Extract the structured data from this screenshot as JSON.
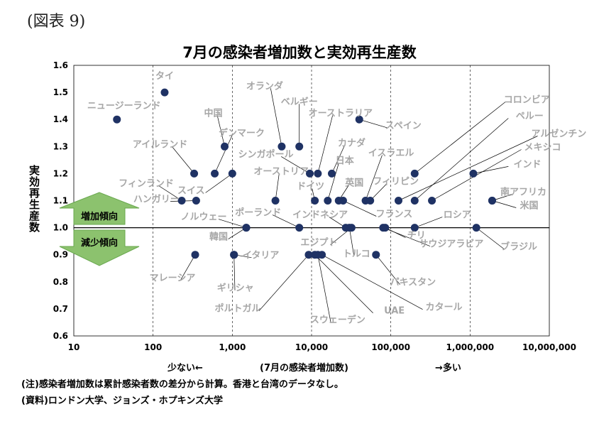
{
  "figure_label": "(図表 9)",
  "notes": {
    "note": "(注)感染者増加数は累計感染者数の差分から計算。香港と台湾のデータなし。",
    "source": "(資料)ロンドン大学、ジョンズ・ホプキンズ大学"
  },
  "x_axis_caption": {
    "left": "少ない←",
    "center": "(7月の感染者増加数)",
    "right": "→多い"
  },
  "arrows": {
    "up": "増加傾向",
    "down": "減少傾向"
  },
  "colors": {
    "point": "#1f3264",
    "label": "#a6a6a6",
    "arrow_fill": "#8cc26e",
    "grid": "#000000"
  },
  "chart_data": {
    "type": "scatter",
    "title": "7月の感染者増加数と実効再生産数",
    "xlabel": "",
    "ylabel": "実効再生産数",
    "xscale": "log",
    "xlim": [
      10,
      10000000
    ],
    "ylim": [
      0.6,
      1.6
    ],
    "xticks": [
      "10",
      "100",
      "1,000",
      "10,000",
      "100,000",
      "1,000,000",
      "10,000,000"
    ],
    "yticks": [
      "0.6",
      "0.7",
      "0.8",
      "0.9",
      "1.0",
      "1.1",
      "1.2",
      "1.3",
      "1.4",
      "1.5",
      "1.6"
    ],
    "grid": "vertical",
    "points": [
      {
        "label": "タイ",
        "x": 140,
        "y": 1.5
      },
      {
        "label": "ニュージーランド",
        "x": 35,
        "y": 1.4
      },
      {
        "label": "オランダ",
        "x": 4200,
        "y": 1.3
      },
      {
        "label": "ベルギー",
        "x": 7000,
        "y": 1.3
      },
      {
        "label": "中国",
        "x": 800,
        "y": 1.3
      },
      {
        "label": "デンマーク",
        "x": 600,
        "y": 1.2
      },
      {
        "label": "アイルランド",
        "x": 330,
        "y": 1.2
      },
      {
        "label": "ハンガリー",
        "x": 350,
        "y": 1.1
      },
      {
        "label": "フィンランド",
        "x": 230,
        "y": 1.1
      },
      {
        "label": "スイス",
        "x": 1000,
        "y": 1.2
      },
      {
        "label": "オーストリア",
        "x": 3500,
        "y": 1.1
      },
      {
        "label": "シンガポール",
        "x": 9500,
        "y": 1.2
      },
      {
        "label": "オーストラリア",
        "x": 12000,
        "y": 1.2
      },
      {
        "label": "スペイン",
        "x": 40000,
        "y": 1.4
      },
      {
        "label": "カナダ",
        "x": 18000,
        "y": 1.2
      },
      {
        "label": "日本",
        "x": 16000,
        "y": 1.1
      },
      {
        "label": "ドイツ",
        "x": 11000,
        "y": 1.1
      },
      {
        "label": "英国",
        "x": 22000,
        "y": 1.1
      },
      {
        "label": "イスラエル",
        "x": 48000,
        "y": 1.1
      },
      {
        "label": "フィリピン",
        "x": 55000,
        "y": 1.1
      },
      {
        "label": "フランス",
        "x": 25000,
        "y": 1.1
      },
      {
        "label": "コロンビア",
        "x": 200000,
        "y": 1.2
      },
      {
        "label": "ペルー",
        "x": 200000,
        "y": 1.1
      },
      {
        "label": "アルゼンチン",
        "x": 125000,
        "y": 1.1
      },
      {
        "label": "メキシコ",
        "x": 330000,
        "y": 1.1
      },
      {
        "label": "インド",
        "x": 1100000,
        "y": 1.2
      },
      {
        "label": "南アフリカ",
        "x": 1900000,
        "y": 1.1
      },
      {
        "label": "米国",
        "x": 1900000,
        "y": 1.1
      },
      {
        "label": "ロシア",
        "x": 200000,
        "y": 1.0
      },
      {
        "label": "ブラジル",
        "x": 1200000,
        "y": 1.0
      },
      {
        "label": "ノルウェー",
        "x": 1500,
        "y": 1.0
      },
      {
        "label": "ポーランド",
        "x": 7000,
        "y": 1.0
      },
      {
        "label": "インドネシア",
        "x": 27000,
        "y": 1.0
      },
      {
        "label": "韓国",
        "x": 1500,
        "y": 1.0
      },
      {
        "label": "エジプト",
        "x": 32000,
        "y": 1.0
      },
      {
        "label": "サウジアラビア",
        "x": 80000,
        "y": 1.0
      },
      {
        "label": "イタリア",
        "x": 1050,
        "y": 0.9
      },
      {
        "label": "トルコ",
        "x": 30000,
        "y": 1.0
      },
      {
        "label": "チリ",
        "x": 85000,
        "y": 1.0
      },
      {
        "label": "マレーシア",
        "x": 340,
        "y": 0.9
      },
      {
        "label": "ギリシャ",
        "x": 1050,
        "y": 0.9
      },
      {
        "label": "ポルトガル",
        "x": 9200,
        "y": 0.9
      },
      {
        "label": "スウェーデン",
        "x": 12000,
        "y": 0.9
      },
      {
        "label": "UAE",
        "x": 11000,
        "y": 0.9
      },
      {
        "label": "パキスタン",
        "x": 65000,
        "y": 0.9
      },
      {
        "label": "カタール",
        "x": 13500,
        "y": 0.9
      }
    ]
  }
}
